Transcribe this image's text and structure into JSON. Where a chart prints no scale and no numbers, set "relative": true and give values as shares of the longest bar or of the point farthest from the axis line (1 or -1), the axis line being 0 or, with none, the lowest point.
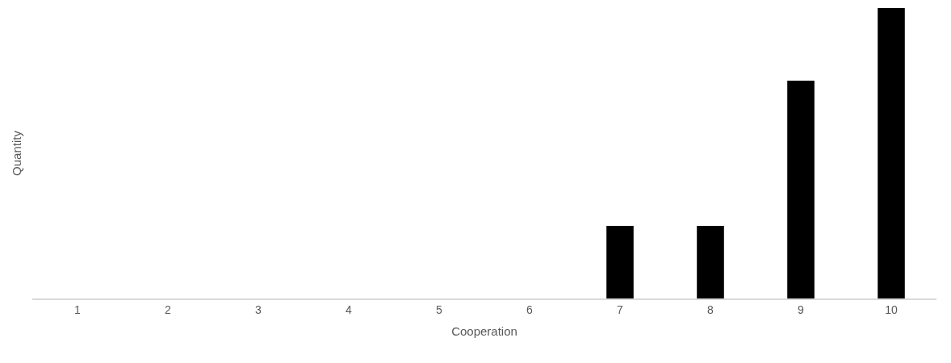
{
  "chart_data": {
    "type": "bar",
    "relative": true,
    "xlabel": "Cooperation",
    "ylabel": "Quantity",
    "categories": [
      "1",
      "2",
      "3",
      "4",
      "5",
      "6",
      "7",
      "8",
      "9",
      "10"
    ],
    "values": [
      0,
      0,
      0,
      0,
      0,
      0,
      0.25,
      0.25,
      0.75,
      1
    ],
    "color": "#000000"
  }
}
